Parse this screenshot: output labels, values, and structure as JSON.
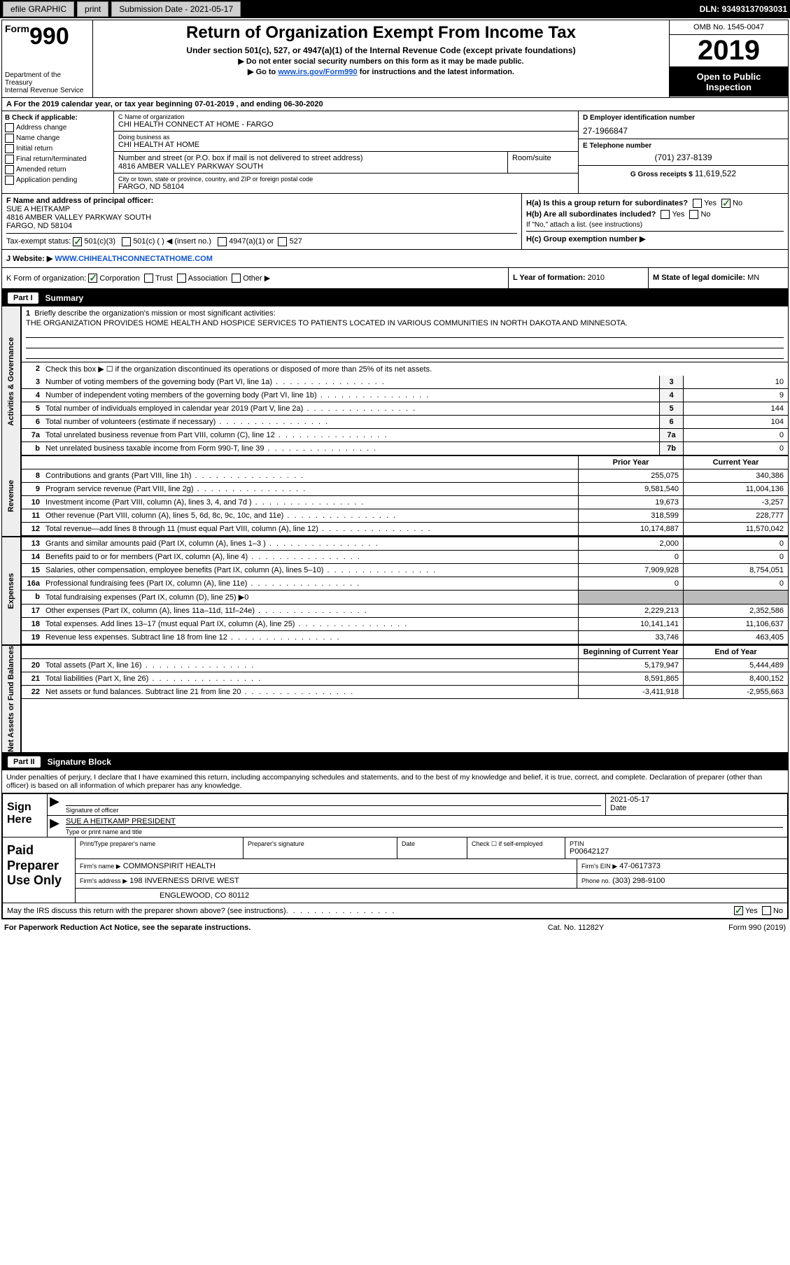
{
  "topbar": {
    "efile_label": "efile GRAPHIC",
    "print_label": "print",
    "submission_label": "Submission Date - 2021-05-17",
    "dln_label": "DLN: 93493137093031"
  },
  "header": {
    "form_prefix": "Form",
    "form_number": "990",
    "dept_label": "Department of the Treasury\nInternal Revenue Service",
    "title": "Return of Organization Exempt From Income Tax",
    "subtitle": "Under section 501(c), 527, or 4947(a)(1) of the Internal Revenue Code (except private foundations)",
    "note1": "▶ Do not enter social security numbers on this form as it may be made public.",
    "note2_pre": "▶ Go to ",
    "note2_link": "www.irs.gov/Form990",
    "note2_post": " for instructions and the latest information.",
    "omb": "OMB No. 1545-0047",
    "year": "2019",
    "public": "Open to Public Inspection"
  },
  "period": "A For the 2019 calendar year, or tax year beginning 07-01-2019   , and ending 06-30-2020",
  "section_b": {
    "label": "B Check if applicable:",
    "items": [
      "Address change",
      "Name change",
      "Initial return",
      "Final return/terminated",
      "Amended return",
      "Application pending"
    ]
  },
  "section_c": {
    "name_lbl": "C Name of organization",
    "name_val": "CHI HEALTH CONNECT AT HOME - FARGO",
    "dba_lbl": "Doing business as",
    "dba_val": "CHI HEALTH AT HOME",
    "addr_lbl": "Number and street (or P.O. box if mail is not delivered to street address)",
    "addr_val": "4816 AMBER VALLEY PARKWAY SOUTH",
    "room_lbl": "Room/suite",
    "city_lbl": "City or town, state or province, country, and ZIP or foreign postal code",
    "city_val": "FARGO, ND  58104"
  },
  "section_d": {
    "ein_lbl": "D Employer identification number",
    "ein_val": "27-1966847",
    "phone_lbl": "E Telephone number",
    "phone_val": "(701) 237-8139",
    "gross_lbl": "G Gross receipts $",
    "gross_val": "11,619,522"
  },
  "section_f": {
    "lbl": "F  Name and address of principal officer:",
    "name": "SUE A HEITKAMP",
    "addr1": "4816 AMBER VALLEY PARKWAY SOUTH",
    "addr2": "FARGO, ND  58104"
  },
  "section_h": {
    "ha_lbl": "H(a)  Is this a group return for subordinates?",
    "ha_no_checked": true,
    "hb_lbl": "H(b)  Are all subordinates included?",
    "hb_note": "If \"No,\" attach a list. (see instructions)",
    "hc_lbl": "H(c)  Group exemption number ▶"
  },
  "tax_status": {
    "lbl": "Tax-exempt status:",
    "opt1": "501(c)(3)",
    "opt2": "501(c) (  ) ◀ (insert no.)",
    "opt3": "4947(a)(1) or",
    "opt4": "527"
  },
  "website": {
    "lbl": "J   Website: ▶",
    "val": "WWW.CHIHEALTHCONNECTATHOME.COM"
  },
  "k_row": {
    "lbl": "K Form of organization:",
    "corp": "Corporation",
    "trust": "Trust",
    "assoc": "Association",
    "other": "Other ▶",
    "l_lbl": "L Year of formation:",
    "l_val": "2010",
    "m_lbl": "M State of legal domicile:",
    "m_val": "MN"
  },
  "part1": {
    "hdr": "Summary",
    "tab1": "Activities & Governance",
    "tab2": "Revenue",
    "tab3": "Expenses",
    "tab4": "Net Assets or Fund Balances",
    "line1_lbl": "Briefly describe the organization's mission or most significant activities:",
    "line1_val": "THE ORGANIZATION PROVIDES HOME HEALTH AND HOSPICE SERVICES TO PATIENTS LOCATED IN VARIOUS COMMUNITIES IN NORTH DAKOTA AND MINNESOTA.",
    "line2": "Check this box ▶ ☐  if the organization discontinued its operations or disposed of more than 25% of its net assets.",
    "lines_ag": [
      {
        "n": "3",
        "d": "Number of voting members of the governing body (Part VI, line 1a)",
        "b": "3",
        "v": "10"
      },
      {
        "n": "4",
        "d": "Number of independent voting members of the governing body (Part VI, line 1b)",
        "b": "4",
        "v": "9"
      },
      {
        "n": "5",
        "d": "Total number of individuals employed in calendar year 2019 (Part V, line 2a)",
        "b": "5",
        "v": "144"
      },
      {
        "n": "6",
        "d": "Total number of volunteers (estimate if necessary)",
        "b": "6",
        "v": "104"
      },
      {
        "n": "7a",
        "d": "Total unrelated business revenue from Part VIII, column (C), line 12",
        "b": "7a",
        "v": "0"
      },
      {
        "n": "b",
        "d": "Net unrelated business taxable income from Form 990-T, line 39",
        "b": "7b",
        "v": "0"
      }
    ],
    "prior_lbl": "Prior Year",
    "current_lbl": "Current Year",
    "rev_lines": [
      {
        "n": "8",
        "d": "Contributions and grants (Part VIII, line 1h)",
        "p": "255,075",
        "c": "340,386"
      },
      {
        "n": "9",
        "d": "Program service revenue (Part VIII, line 2g)",
        "p": "9,581,540",
        "c": "11,004,136"
      },
      {
        "n": "10",
        "d": "Investment income (Part VIII, column (A), lines 3, 4, and 7d )",
        "p": "19,673",
        "c": "-3,257"
      },
      {
        "n": "11",
        "d": "Other revenue (Part VIII, column (A), lines 5, 6d, 8c, 9c, 10c, and 11e)",
        "p": "318,599",
        "c": "228,777"
      },
      {
        "n": "12",
        "d": "Total revenue—add lines 8 through 11 (must equal Part VIII, column (A), line 12)",
        "p": "10,174,887",
        "c": "11,570,042"
      }
    ],
    "exp_lines": [
      {
        "n": "13",
        "d": "Grants and similar amounts paid (Part IX, column (A), lines 1–3 )",
        "p": "2,000",
        "c": "0"
      },
      {
        "n": "14",
        "d": "Benefits paid to or for members (Part IX, column (A), line 4)",
        "p": "0",
        "c": "0"
      },
      {
        "n": "15",
        "d": "Salaries, other compensation, employee benefits (Part IX, column (A), lines 5–10)",
        "p": "7,909,928",
        "c": "8,754,051"
      },
      {
        "n": "16a",
        "d": "Professional fundraising fees (Part IX, column (A), line 11e)",
        "p": "0",
        "c": "0"
      }
    ],
    "line16b": "Total fundraising expenses (Part IX, column (D), line 25) ▶0",
    "exp_lines2": [
      {
        "n": "17",
        "d": "Other expenses (Part IX, column (A), lines 11a–11d, 11f–24e)",
        "p": "2,229,213",
        "c": "2,352,586"
      },
      {
        "n": "18",
        "d": "Total expenses. Add lines 13–17 (must equal Part IX, column (A), line 25)",
        "p": "10,141,141",
        "c": "11,106,637"
      },
      {
        "n": "19",
        "d": "Revenue less expenses. Subtract line 18 from line 12",
        "p": "33,746",
        "c": "463,405"
      }
    ],
    "begin_lbl": "Beginning of Current Year",
    "end_lbl": "End of Year",
    "na_lines": [
      {
        "n": "20",
        "d": "Total assets (Part X, line 16)",
        "p": "5,179,947",
        "c": "5,444,489"
      },
      {
        "n": "21",
        "d": "Total liabilities (Part X, line 26)",
        "p": "8,591,865",
        "c": "8,400,152"
      },
      {
        "n": "22",
        "d": "Net assets or fund balances. Subtract line 21 from line 20",
        "p": "-3,411,918",
        "c": "-2,955,663"
      }
    ]
  },
  "part2": {
    "hdr": "Signature Block",
    "intro": "Under penalties of perjury, I declare that I have examined this return, including accompanying schedules and statements, and to the best of my knowledge and belief, it is true, correct, and complete. Declaration of preparer (other than officer) is based on all information of which preparer has any knowledge.",
    "sign_here": "Sign Here",
    "sig_officer_lbl": "Signature of officer",
    "date_lbl": "Date",
    "date_val": "2021-05-17",
    "name_title_lbl": "Type or print name and title",
    "name_title_val": "SUE A HEITKAMP  PRESIDENT",
    "paid_label": "Paid Preparer Use Only",
    "prep_name_lbl": "Print/Type preparer's name",
    "prep_sig_lbl": "Preparer's signature",
    "prep_date_lbl": "Date",
    "self_emp_lbl": "Check ☐ if self-employed",
    "ptin_lbl": "PTIN",
    "ptin_val": "P00642127",
    "firm_name_lbl": "Firm's name    ▶",
    "firm_name_val": "COMMONSPIRIT HEALTH",
    "firm_ein_lbl": "Firm's EIN ▶",
    "firm_ein_val": "47-0617373",
    "firm_addr_lbl": "Firm's address ▶",
    "firm_addr_val1": "198 INVERNESS DRIVE WEST",
    "firm_addr_val2": "ENGLEWOOD, CO  80112",
    "phone_lbl": "Phone no.",
    "phone_val": "(303) 298-9100",
    "discuss": "May the IRS discuss this return with the preparer shown above? (see instructions)"
  },
  "footer": {
    "left": "For Paperwork Reduction Act Notice, see the separate instructions.",
    "mid": "Cat. No. 11282Y",
    "right": "Form 990 (2019)"
  },
  "common": {
    "yes": "Yes",
    "no": "No"
  }
}
